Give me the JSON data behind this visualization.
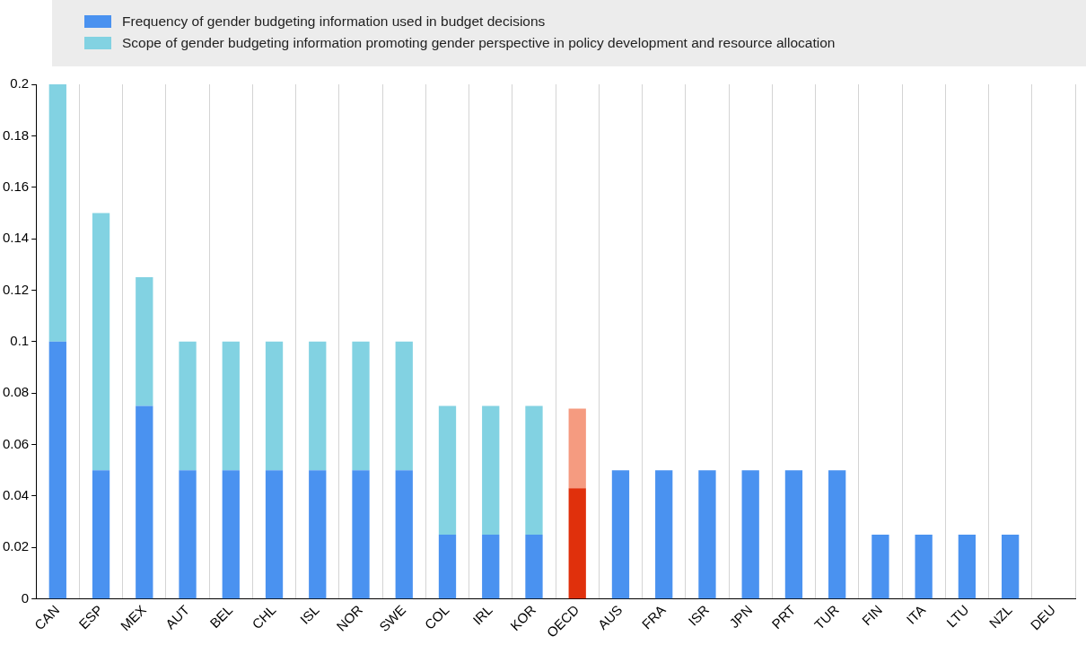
{
  "chart_data": {
    "type": "bar",
    "stacked": true,
    "legend": "top",
    "grid": "x",
    "categories": [
      "CAN",
      "ESP",
      "MEX",
      "AUT",
      "BEL",
      "CHL",
      "ISL",
      "NOR",
      "SWE",
      "COL",
      "IRL",
      "KOR",
      "OECD",
      "AUS",
      "FRA",
      "ISR",
      "JPN",
      "PRT",
      "TUR",
      "FIN",
      "ITA",
      "LTU",
      "NZL",
      "DEU"
    ],
    "series": [
      {
        "name": "Frequency of gender budgeting information used in budget decisions",
        "color": "#4a92f0",
        "colors": [
          "#4a92f0",
          "#4a92f0",
          "#4a92f0",
          "#4a92f0",
          "#4a92f0",
          "#4a92f0",
          "#4a92f0",
          "#4a92f0",
          "#4a92f0",
          "#4a92f0",
          "#4a92f0",
          "#4a92f0",
          "#e0300c",
          "#4a92f0",
          "#4a92f0",
          "#4a92f0",
          "#4a92f0",
          "#4a92f0",
          "#4a92f0",
          "#4a92f0",
          "#4a92f0",
          "#4a92f0",
          "#4a92f0",
          "#4a92f0"
        ],
        "values": [
          0.1,
          0.05,
          0.075,
          0.05,
          0.05,
          0.05,
          0.05,
          0.05,
          0.05,
          0.025,
          0.025,
          0.025,
          0.043,
          0.05,
          0.05,
          0.05,
          0.05,
          0.05,
          0.05,
          0.025,
          0.025,
          0.025,
          0.025,
          0
        ]
      },
      {
        "name": "Scope of gender budgeting information promoting gender perspective in policy development and resource allocation",
        "color": "#82d2e2",
        "colors": [
          "#82d2e2",
          "#82d2e2",
          "#82d2e2",
          "#82d2e2",
          "#82d2e2",
          "#82d2e2",
          "#82d2e2",
          "#82d2e2",
          "#82d2e2",
          "#82d2e2",
          "#82d2e2",
          "#82d2e2",
          "#f59b80",
          "#82d2e2",
          "#82d2e2",
          "#82d2e2",
          "#82d2e2",
          "#82d2e2",
          "#82d2e2",
          "#82d2e2",
          "#82d2e2",
          "#82d2e2",
          "#82d2e2",
          "#82d2e2"
        ],
        "values": [
          0.1,
          0.1,
          0.05,
          0.05,
          0.05,
          0.05,
          0.05,
          0.05,
          0.05,
          0.05,
          0.05,
          0.05,
          0.031,
          0,
          0,
          0,
          0,
          0,
          0,
          0,
          0,
          0,
          0,
          0
        ]
      }
    ],
    "ylim": [
      0,
      0.2
    ],
    "yticks": [
      0,
      0.02,
      0.04,
      0.06,
      0.08,
      0.1,
      0.12,
      0.14,
      0.16,
      0.18,
      0.2
    ]
  }
}
